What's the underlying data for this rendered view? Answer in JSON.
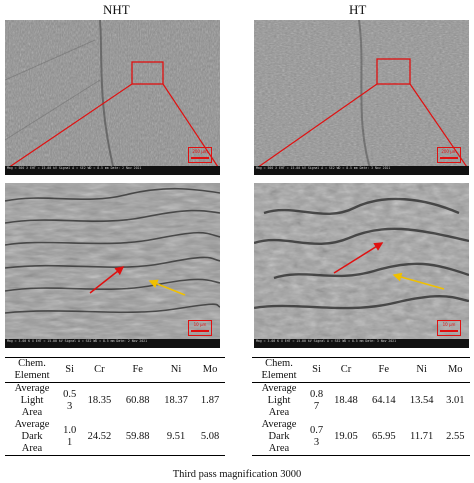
{
  "columns": [
    {
      "title": "NHT",
      "scale_top": "200 µm",
      "scale_bottom": "10 µm",
      "infobar_top": "Mag = 500 X   EHT = 15.00 kV   Signal A = SE2   WD = 8.5 mm   Date: 2 Nov 2021",
      "infobar_bottom": "Mag = 3.00 K X   EHT = 15.00 kV   Signal A = SE2   WD = 8.5 mm   Date: 2 Nov 2021"
    },
    {
      "title": "HT",
      "scale_top": "200 µm",
      "scale_bottom": "10 µm",
      "infobar_top": "Mag = 500 X   EHT = 15.00 kV   Signal A = SE2   WD = 8.5 mm   Date: 3 Nov 2021",
      "infobar_bottom": "Mag = 3.00 K X   EHT = 15.00 kV   Signal A = SE2   WD = 8.5 mm   Date: 3 Nov 2021"
    }
  ],
  "tables": [
    {
      "header": {
        "label_line1": "Chem.",
        "label_line2": "Element",
        "cols": [
          "Si",
          "Cr",
          "Fe",
          "Ni",
          "Mo"
        ]
      },
      "rows": [
        {
          "label": [
            "Average",
            "Light",
            "Area"
          ],
          "si": [
            "0.5",
            "3"
          ],
          "cr": "18.35",
          "fe": "60.88",
          "ni": "18.37",
          "mo": "1.87"
        },
        {
          "label": [
            "Average",
            "Dark",
            "Area"
          ],
          "si": [
            "1.0",
            "1"
          ],
          "cr": "24.52",
          "fe": "59.88",
          "ni": "9.51",
          "mo": "5.08"
        }
      ]
    },
    {
      "header": {
        "label_line1": "Chem.",
        "label_line2": "Element",
        "cols": [
          "Si",
          "Cr",
          "Fe",
          "Ni",
          "Mo"
        ]
      },
      "rows": [
        {
          "label": [
            "Average",
            "Light",
            "Area"
          ],
          "si": [
            "0.8",
            "7"
          ],
          "cr": "18.48",
          "fe": "64.14",
          "ni": "13.54",
          "mo": "3.01"
        },
        {
          "label": [
            "Average",
            "Dark",
            "Area"
          ],
          "si": [
            "0.7",
            "3"
          ],
          "cr": "19.05",
          "fe": "65.95",
          "ni": "11.71",
          "mo": "2.55"
        }
      ]
    }
  ],
  "caption": "Third pass magnification 3000"
}
